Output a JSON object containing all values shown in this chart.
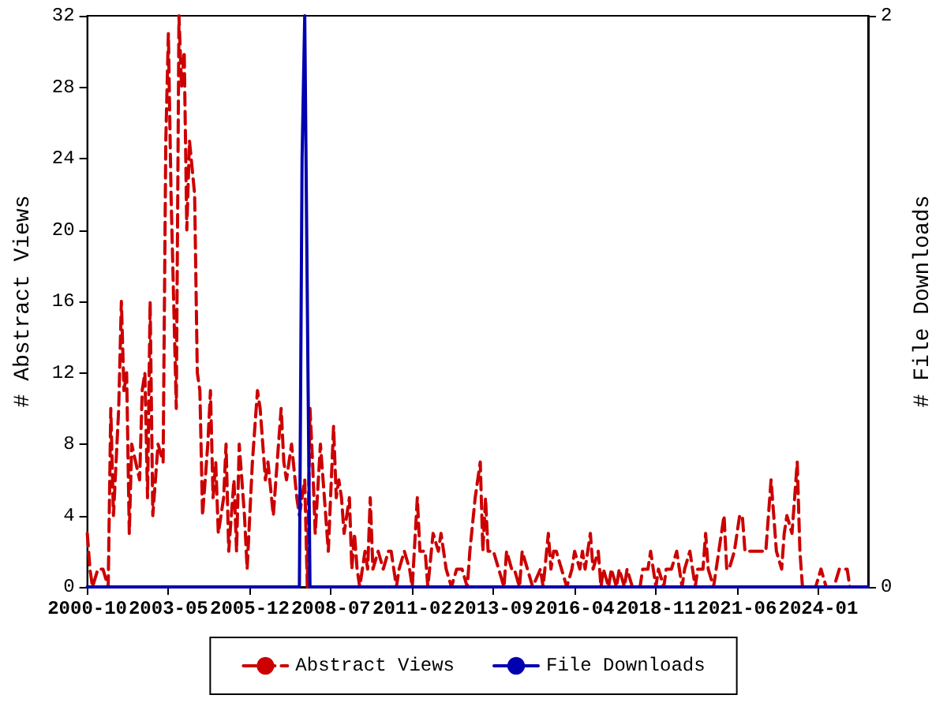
{
  "chart_data": {
    "type": "line",
    "ylabel": "# Abstract Views",
    "y2label": "# File Downloads",
    "xlim": [
      "2000-10",
      "2025-08"
    ],
    "xticks": [
      "2000-10",
      "2003-05",
      "2005-12",
      "2008-07",
      "2011-02",
      "2013-09",
      "2016-04",
      "2018-11",
      "2021-06",
      "2024-01"
    ],
    "ylim": [
      0,
      32
    ],
    "yticks": [
      0,
      4,
      8,
      12,
      16,
      20,
      24,
      28,
      32
    ],
    "y2lim": [
      0,
      2
    ],
    "y2ticks": [
      0,
      2
    ],
    "grid": false,
    "legend": "bottom",
    "marker": "none",
    "series": [
      {
        "name": "Abstract Views",
        "color": "#cc0000",
        "line_style": "dashed",
        "x": [
          "2000-10",
          "2000-11",
          "2000-12",
          "2001-02",
          "2001-04",
          "2001-06",
          "2001-07",
          "2001-08",
          "2001-10",
          "2001-11",
          "2001-12",
          "2002-01",
          "2002-02",
          "2002-03",
          "2002-06",
          "2002-07",
          "2002-08",
          "2002-09",
          "2002-10",
          "2002-11",
          "2003-01",
          "2003-03",
          "2003-04",
          "2003-05",
          "2003-06",
          "2003-08",
          "2003-09",
          "2003-10",
          "2003-11",
          "2003-12",
          "2004-01",
          "2004-03",
          "2004-04",
          "2004-05",
          "2004-06",
          "2004-08",
          "2004-09",
          "2004-10",
          "2004-11",
          "2004-12",
          "2005-02",
          "2005-03",
          "2005-04",
          "2005-06",
          "2005-07",
          "2005-08",
          "2005-10",
          "2005-11",
          "2006-01",
          "2006-03",
          "2006-04",
          "2006-06",
          "2006-07",
          "2006-09",
          "2006-10",
          "2006-12",
          "2007-01",
          "2007-02",
          "2007-04",
          "2007-06",
          "2007-07",
          "2007-08",
          "2007-09",
          "2007-10",
          "2007-11",
          "2007-12",
          "2008-01",
          "2008-03",
          "2008-04",
          "2008-06",
          "2008-08",
          "2008-09",
          "2008-10",
          "2008-11",
          "2008-12",
          "2009-02",
          "2009-03",
          "2009-04",
          "2009-05",
          "2009-06",
          "2009-08",
          "2009-09",
          "2009-10",
          "2009-11",
          "2010-01",
          "2010-03",
          "2010-05",
          "2010-06",
          "2010-08",
          "2010-09",
          "2010-11",
          "2011-01",
          "2011-02",
          "2011-04",
          "2011-05",
          "2011-07",
          "2011-08",
          "2011-10",
          "2011-12",
          "2012-01",
          "2012-03",
          "2012-05",
          "2012-07",
          "2012-09",
          "2012-11",
          "2012-12",
          "2013-02",
          "2013-04",
          "2013-05",
          "2013-06",
          "2013-07",
          "2013-09",
          "2013-11",
          "2014-01",
          "2014-02",
          "2014-04",
          "2014-05",
          "2014-07",
          "2014-08",
          "2014-10",
          "2014-12",
          "2015-03",
          "2015-04",
          "2015-06",
          "2015-07",
          "2015-08",
          "2015-09",
          "2015-11",
          "2016-01",
          "2016-03",
          "2016-04",
          "2016-06",
          "2016-07",
          "2016-08",
          "2016-10",
          "2016-11",
          "2017-01",
          "2017-02",
          "2017-03",
          "2017-05",
          "2017-06",
          "2017-08",
          "2017-09",
          "2017-11",
          "2017-12",
          "2018-02",
          "2018-05",
          "2018-06",
          "2018-08",
          "2018-09",
          "2018-11",
          "2018-12",
          "2019-02",
          "2019-03",
          "2019-05",
          "2019-07",
          "2019-08",
          "2019-09",
          "2019-10",
          "2019-12",
          "2020-02",
          "2020-03",
          "2020-05",
          "2020-06",
          "2020-07",
          "2020-09",
          "2020-11",
          "2021-01",
          "2021-02",
          "2021-03",
          "2021-05",
          "2021-07",
          "2021-08",
          "2021-09",
          "2021-11",
          "2022-01",
          "2022-03",
          "2022-05",
          "2022-07",
          "2022-08",
          "2022-09",
          "2022-11",
          "2022-12",
          "2023-01",
          "2023-03",
          "2023-04",
          "2023-05",
          "2023-06",
          "2023-07",
          "2023-10",
          "2023-12",
          "2024-02",
          "2024-04",
          "2024-07",
          "2024-09",
          "2024-10",
          "2024-12",
          "2025-01",
          "2025-03",
          "2025-06"
        ],
        "values": [
          3,
          1,
          0,
          1,
          1,
          0,
          10,
          4,
          10,
          16,
          11,
          12,
          3,
          8,
          6,
          11,
          12,
          5,
          16,
          4,
          8,
          7,
          25,
          31,
          22,
          10,
          32,
          28,
          30,
          20,
          25,
          22,
          12,
          11,
          4,
          8,
          11,
          5,
          7,
          3,
          5,
          8,
          2,
          6,
          2,
          8,
          4,
          1,
          7,
          11,
          10,
          6,
          7,
          4,
          6,
          10,
          7,
          6,
          8,
          5,
          4,
          5,
          6,
          0,
          10,
          7,
          3,
          8,
          6,
          2,
          9,
          5,
          6,
          5,
          3,
          5,
          1,
          3,
          1,
          0,
          2,
          1,
          5,
          1,
          2,
          1,
          2,
          2,
          0,
          1,
          2,
          1,
          0,
          5,
          2,
          2,
          0,
          3,
          2,
          3,
          1,
          0,
          1,
          1,
          0,
          2,
          5,
          7,
          2,
          5,
          2,
          2,
          1,
          0,
          2,
          1,
          1,
          0,
          2,
          1,
          0,
          1,
          0,
          3,
          1,
          2,
          2,
          1,
          0,
          1,
          2,
          1,
          2,
          1,
          3,
          1,
          2,
          0,
          1,
          0,
          1,
          0,
          1,
          0,
          1,
          0,
          0,
          1,
          1,
          2,
          0,
          1,
          0,
          1,
          1,
          2,
          1,
          0,
          1,
          2,
          0,
          1,
          1,
          3,
          1,
          0,
          2,
          4,
          1,
          1,
          2,
          4,
          4,
          2,
          2,
          2,
          2,
          2,
          6,
          4,
          2,
          1,
          3,
          4,
          3,
          5,
          7,
          2,
          0,
          0,
          0,
          1,
          0,
          0,
          1,
          1,
          1,
          0,
          0,
          0
        ]
      },
      {
        "name": "File Downloads",
        "color": "#0000b0",
        "line_style": "solid",
        "axis": "y2",
        "x": [
          "2000-10",
          "2007-07",
          "2007-08",
          "2007-09",
          "2007-10",
          "2007-11",
          "2025-08"
        ],
        "values": [
          0,
          0,
          1.5,
          2,
          1,
          0,
          0
        ]
      }
    ]
  }
}
